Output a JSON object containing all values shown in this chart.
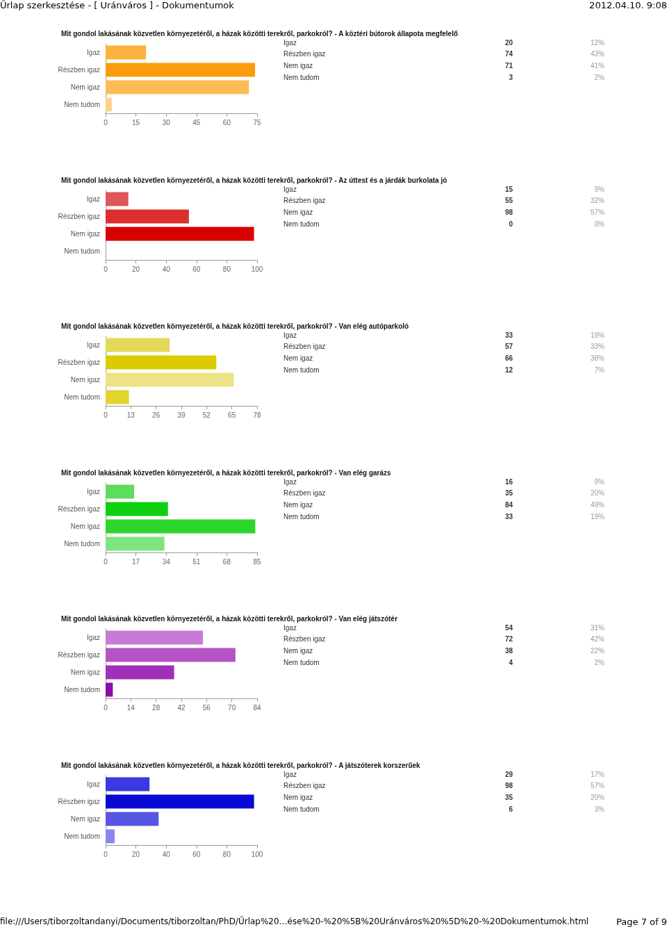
{
  "chart_data": [
    {
      "type": "bar",
      "orientation": "horizontal",
      "title": "Mit gondol lakásának közvetlen környezetéről, a házak közötti terekről, parkokról? - A köztéri bútorok állapota megfelelő",
      "categories": [
        "Igaz",
        "Részben igaz",
        "Nem igaz",
        "Nem tudom"
      ],
      "values": [
        20,
        74,
        71,
        3
      ],
      "colors": [
        "#fbb13c",
        "#fb9c0c",
        "#fdbb55",
        "#fdd08e"
      ],
      "xlim": [
        0,
        75
      ],
      "xticks": [
        0,
        15,
        30,
        45,
        60,
        75
      ],
      "annotations": [
        "20",
        "74",
        "71",
        "3",
        "12%",
        "43%",
        "41%",
        "2%",
        "Űrlap szerkesztése - [ Uránváros ] - Dokumentumok",
        "2012.04.10. 9:08"
      ]
    },
    {
      "type": "bar",
      "orientation": "horizontal",
      "title": "Mit gondol lakásának közvetlen környezetéről, a házak közötti terekről, parkokról? - Az úttest és a járdák burkolata jó",
      "categories": [
        "Igaz",
        "Részben igaz",
        "Nem igaz",
        "Nem tudom"
      ],
      "values": [
        15,
        55,
        98,
        0
      ],
      "colors": [
        "#e05555",
        "#dc3030",
        "#d90000",
        "#e88888"
      ],
      "xlim": [
        0,
        100
      ],
      "xticks": [
        0,
        20,
        40,
        60,
        80,
        100
      ],
      "annotations": [
        "15",
        "55",
        "98",
        "0",
        "9%",
        "32%",
        "57%",
        "0%"
      ]
    },
    {
      "type": "bar",
      "orientation": "horizontal",
      "title": "Mit gondol lakásának közvetlen környezetéről, a házak közötti terekről, parkokról? - Van elég autóparkoló",
      "categories": [
        "Igaz",
        "Részben igaz",
        "Nem igaz",
        "Nem tudom"
      ],
      "values": [
        33,
        57,
        66,
        12
      ],
      "colors": [
        "#e3d85a",
        "#dccb00",
        "#ede384",
        "#e2d32e"
      ],
      "xlim": [
        0,
        78
      ],
      "xticks": [
        0,
        13,
        26,
        39,
        52,
        65,
        78
      ],
      "annotations": [
        "33",
        "57",
        "66",
        "12",
        "19%",
        "33%",
        "38%",
        "7%"
      ]
    },
    {
      "type": "bar",
      "orientation": "horizontal",
      "title": "Mit gondol lakásának közvetlen környezetéről, a házak közötti terekről, parkokról? - Van elég garázs",
      "categories": [
        "Igaz",
        "Részben igaz",
        "Nem igaz",
        "Nem tudom"
      ],
      "values": [
        16,
        35,
        84,
        33
      ],
      "colors": [
        "#5ddc5d",
        "#0fd00f",
        "#2dd62d",
        "#7ee47e"
      ],
      "xlim": [
        0,
        85
      ],
      "xticks": [
        0,
        17,
        34,
        51,
        68,
        85
      ],
      "annotations": [
        "16",
        "35",
        "84",
        "33",
        "9%",
        "20%",
        "49%",
        "19%"
      ]
    },
    {
      "type": "bar",
      "orientation": "horizontal",
      "title": "Mit gondol lakásának közvetlen környezetéről, a házak közötti terekről, parkokról? - Van elég játszótér",
      "categories": [
        "Igaz",
        "Részben igaz",
        "Nem igaz",
        "Nem tudom"
      ],
      "values": [
        54,
        72,
        38,
        4
      ],
      "colors": [
        "#c97ad6",
        "#b552c5",
        "#a22fb8",
        "#8a0fa6"
      ],
      "xlim": [
        0,
        84
      ],
      "xticks": [
        0,
        14,
        28,
        42,
        56,
        70,
        84
      ],
      "annotations": [
        "54",
        "72",
        "38",
        "4",
        "31%",
        "42%",
        "22%",
        "2%"
      ]
    },
    {
      "type": "bar",
      "orientation": "horizontal",
      "title": "Mit gondol lakásának közvetlen környezetéről, a házak közötti terekről, parkokról? - A játszóterek korszerűek",
      "categories": [
        "Igaz",
        "Részben igaz",
        "Nem igaz",
        "Nem tudom"
      ],
      "values": [
        29,
        98,
        35,
        6
      ],
      "colors": [
        "#3a3ae0",
        "#0a0ad4",
        "#5656e2",
        "#8888ec"
      ],
      "xlim": [
        0,
        100
      ],
      "xticks": [
        0,
        20,
        40,
        60,
        80,
        100
      ],
      "annotations": [
        "29",
        "98",
        "35",
        "6",
        "17%",
        "57%",
        "20%",
        "3%",
        "file:///Users/tiborzoltandanyi/Documents/tiborzoltan/PhD/Űrlap%20…ése%20-%20%5B%20Uránváros%20%5D%20-%20Dokumentumok.html",
        "Page 7 of 9"
      ]
    }
  ]
}
